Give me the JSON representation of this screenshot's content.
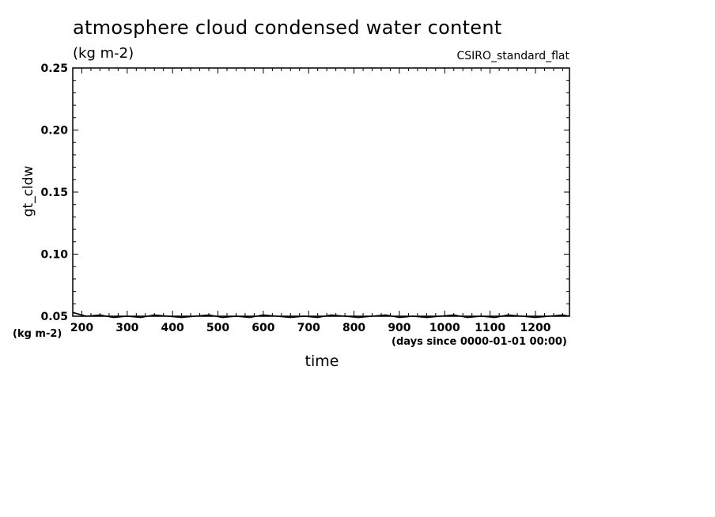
{
  "chart_data": {
    "type": "line",
    "title": "atmosphere cloud condensed water content",
    "units": "(kg m-2)",
    "model": "CSIRO_standard_flat",
    "ylabel": "gt_cldw",
    "xlabel": "time",
    "x_units": "(days since 0000-01-01 00:00)",
    "xlim": [
      180,
      1275
    ],
    "ylim": [
      0.05,
      0.25
    ],
    "x_ticks": [
      200,
      300,
      400,
      500,
      600,
      700,
      800,
      900,
      1000,
      1100,
      1200
    ],
    "y_ticks": [
      "0.05",
      "0.10",
      "0.15",
      "0.20",
      "0.25"
    ],
    "grid": false,
    "series": [
      {
        "color": "#000000",
        "x": [
          180,
          210,
          240,
          270,
          300,
          330,
          360,
          390,
          420,
          450,
          480,
          510,
          540,
          570,
          600,
          630,
          660,
          690,
          720,
          750,
          780,
          810,
          840,
          870,
          900,
          930,
          960,
          990,
          1020,
          1050,
          1080,
          1110,
          1140,
          1170,
          1200,
          1230,
          1260,
          1275
        ],
        "y": [
          0.053,
          0.05,
          0.051,
          0.049,
          0.05,
          0.049,
          0.051,
          0.05,
          0.049,
          0.05,
          0.051,
          0.049,
          0.05,
          0.049,
          0.051,
          0.05,
          0.049,
          0.05,
          0.049,
          0.051,
          0.05,
          0.049,
          0.05,
          0.051,
          0.049,
          0.05,
          0.049,
          0.05,
          0.051,
          0.049,
          0.05,
          0.049,
          0.051,
          0.05,
          0.049,
          0.05,
          0.051,
          0.05
        ]
      }
    ]
  }
}
